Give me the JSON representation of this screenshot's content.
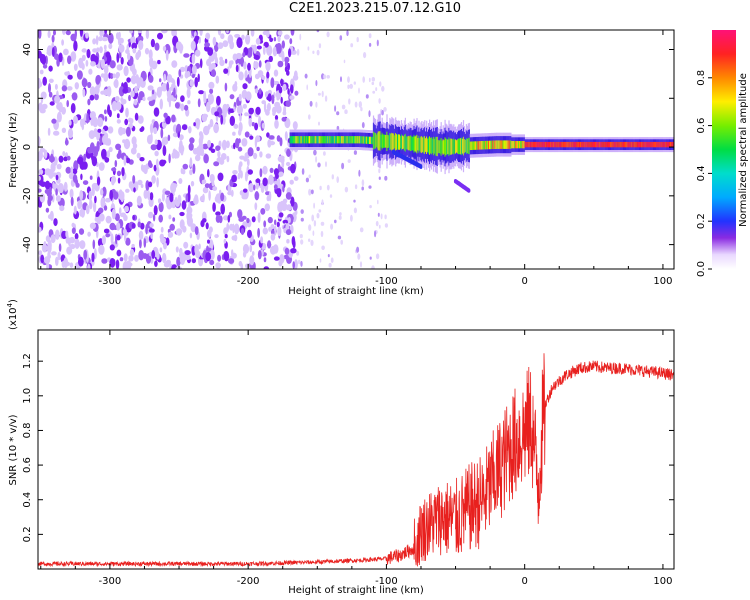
{
  "title": "C2E1.2023.215.07.12.G10",
  "chart_data": [
    {
      "type": "heatmap",
      "xlabel": "Height of straight line (km)",
      "ylabel": "Frequency (Hz)",
      "xlim": [
        -352,
        108
      ],
      "ylim": [
        -50,
        48
      ],
      "x_ticks": [
        -300,
        -200,
        -100,
        0,
        100
      ],
      "y_ticks": [
        -40,
        -20,
        0,
        20,
        40
      ],
      "colorbar": {
        "label": "Normalized spectral amplitude",
        "range": [
          0,
          1
        ],
        "ticks": [
          "0.0",
          "0.2",
          "0.4",
          "0.6",
          "0.8"
        ]
      },
      "regions": [
        {
          "name": "noise",
          "x_range": [
            -352,
            -165
          ],
          "freq_range": [
            -50,
            48
          ],
          "amplitude": 0.1
        },
        {
          "name": "sparse noise",
          "x_range": [
            -165,
            -100
          ],
          "freq_range": [
            -50,
            48
          ],
          "amplitude": 0.05
        },
        {
          "name": "signal band",
          "x_range": [
            -170,
            108
          ],
          "freq_center": [
            3,
            3,
            2,
            0,
            1,
            1,
            1
          ],
          "freq_center_x": [
            -170,
            -120,
            -90,
            -60,
            -20,
            40,
            108
          ],
          "amplitude": 0.85
        },
        {
          "name": "secondary trace",
          "x_range": [
            -50,
            -40
          ],
          "freq_range": [
            -14,
            -18
          ],
          "amplitude": 0.2
        }
      ],
      "grid": false
    },
    {
      "type": "line",
      "xlabel": "Height of straight line (km)",
      "ylabel": "SNR (10 * v/v)",
      "y_multiplier": "(x10",
      "y_multiplier_exp": "4",
      "xlim": [
        -352,
        108
      ],
      "ylim": [
        0,
        1.38
      ],
      "x_ticks": [
        -300,
        -200,
        -100,
        0,
        100
      ],
      "y_ticks": [
        0.2,
        0.4,
        0.6,
        0.8,
        1.0,
        1.2
      ],
      "series": [
        {
          "color": "#e8201e",
          "x": [
            -352,
            -300,
            -250,
            -200,
            -150,
            -120,
            -100,
            -90,
            -80,
            -75,
            -70,
            -60,
            -50,
            -40,
            -30,
            -20,
            -15,
            -10,
            -5,
            0,
            5,
            8,
            10,
            12,
            15,
            20,
            30,
            40,
            50,
            60,
            70,
            80,
            90,
            100,
            108
          ],
          "y": [
            0.03,
            0.03,
            0.03,
            0.03,
            0.04,
            0.05,
            0.06,
            0.08,
            0.12,
            0.22,
            0.25,
            0.3,
            0.28,
            0.35,
            0.4,
            0.55,
            0.62,
            0.7,
            0.75,
            0.8,
            0.85,
            0.6,
            0.5,
            0.75,
            0.95,
            1.05,
            1.12,
            1.16,
            1.17,
            1.16,
            1.16,
            1.15,
            1.14,
            1.13,
            1.12
          ]
        }
      ],
      "grid": false
    }
  ]
}
